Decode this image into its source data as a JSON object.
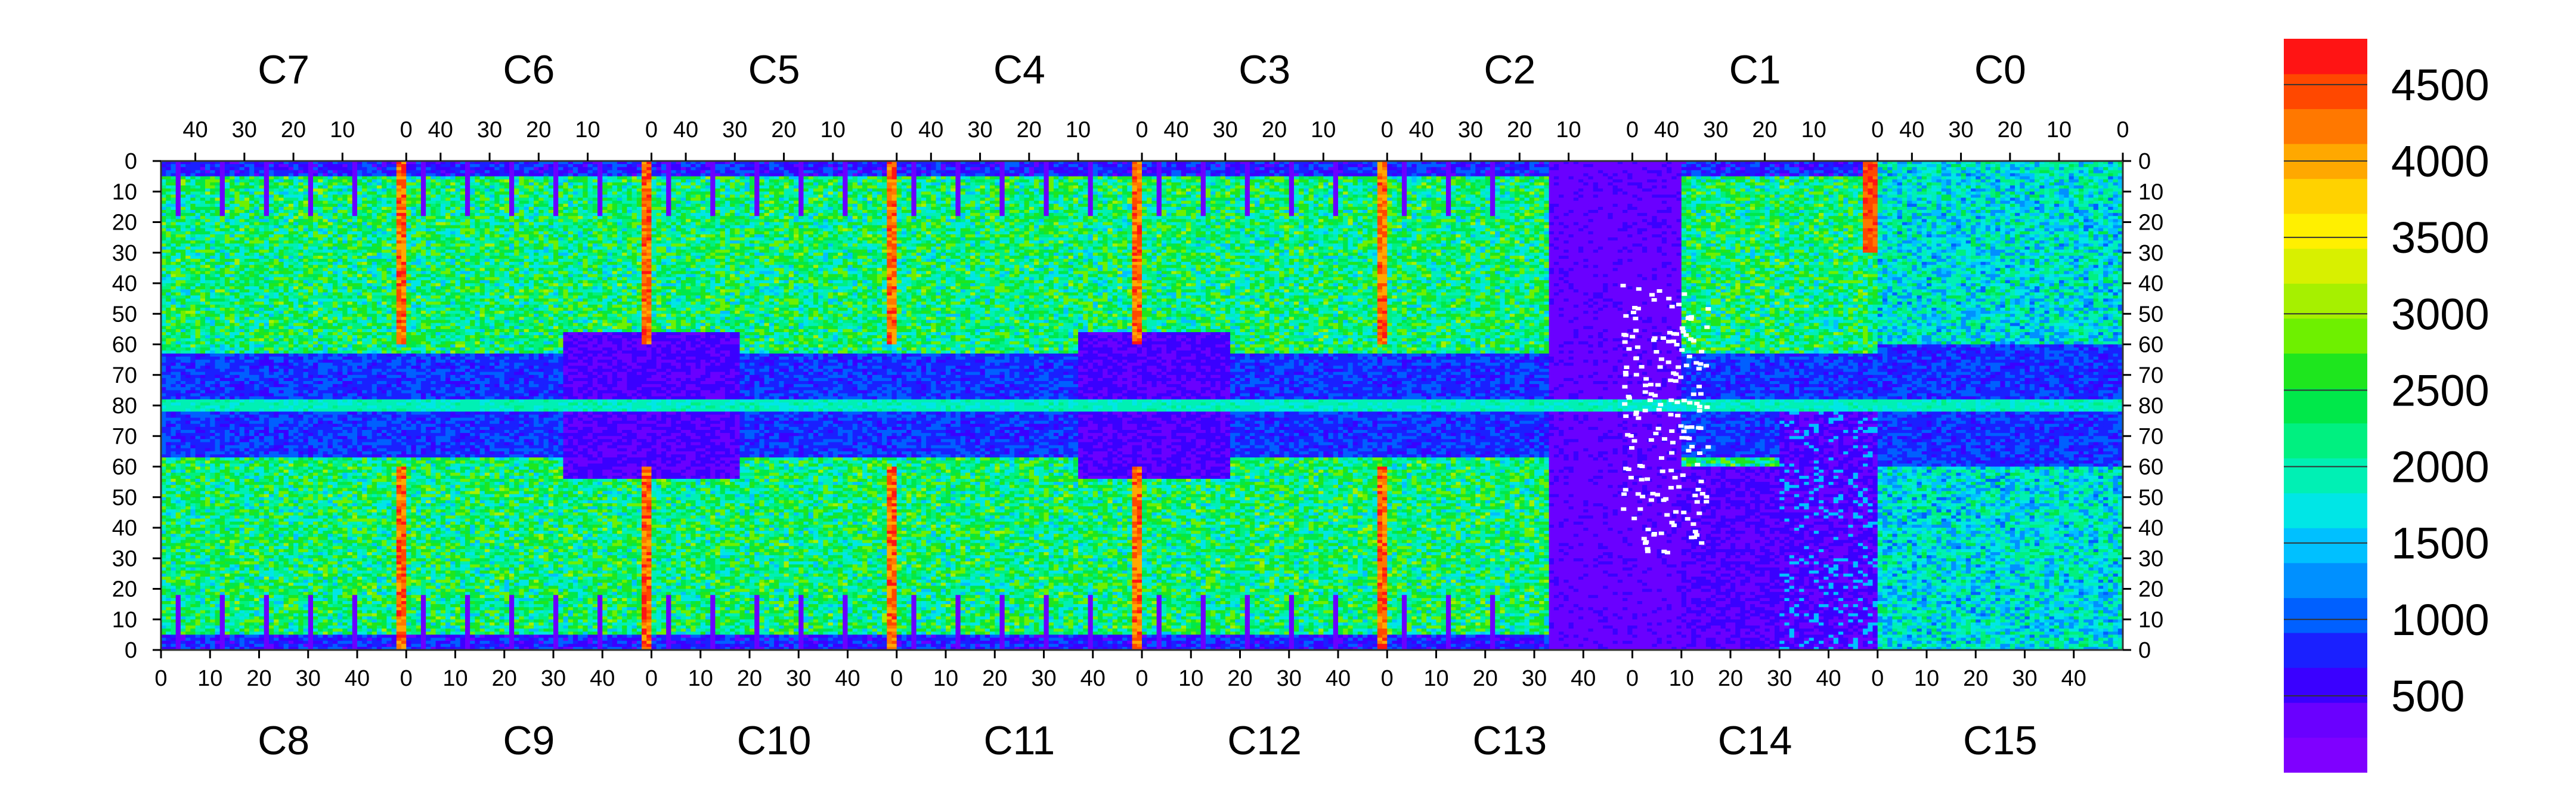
{
  "chart_data": {
    "type": "heatmap",
    "title": "",
    "xlabel": "",
    "ylabel": "",
    "grid": false,
    "top_chip_labels": [
      "C7",
      "C6",
      "C5",
      "C4",
      "C3",
      "C2",
      "C1",
      "C0"
    ],
    "bottom_chip_labels": [
      "C8",
      "C9",
      "C10",
      "C11",
      "C12",
      "C13",
      "C14",
      "C15"
    ],
    "top_x_ticks": [
      "40",
      "30",
      "20",
      "10",
      "0"
    ],
    "bottom_x_ticks": [
      "0",
      "10",
      "20",
      "30",
      "40"
    ],
    "y_ticks": [
      "0",
      "10",
      "20",
      "30",
      "40",
      "50",
      "60",
      "70",
      "80",
      "70",
      "60",
      "50",
      "40",
      "30",
      "20",
      "10",
      "0"
    ],
    "colorbar": {
      "range": [
        0,
        4800
      ],
      "tick_labels": [
        "500",
        "1000",
        "1500",
        "2000",
        "2500",
        "3000",
        "3500",
        "4000",
        "4500"
      ],
      "tick_values": [
        500,
        1000,
        1500,
        2000,
        2500,
        3000,
        3500,
        4000,
        4500
      ],
      "colors": [
        "#7f00ff",
        "#6a00ff",
        "#3a00ff",
        "#1a20ff",
        "#0060ff",
        "#0090ff",
        "#00c0ff",
        "#00e6e6",
        "#00f0b4",
        "#00f080",
        "#00e84a",
        "#1ee61e",
        "#6ef000",
        "#a6f000",
        "#d8f000",
        "#fff000",
        "#ffd200",
        "#ffa800",
        "#ff7800",
        "#ff4800",
        "#ff1414"
      ]
    },
    "features": {
      "hot_columns": [
        {
          "chip_pair": "C7/C8",
          "level": 4400
        },
        {
          "chip_pair": "C6/C9",
          "level": 4000
        },
        {
          "chip_pair": "C5/C10",
          "level": 4200
        },
        {
          "chip_pair": "C4/C11",
          "level": 4200
        },
        {
          "chip_pair": "C3/C12",
          "level": 4100
        },
        {
          "chip_pair": "C1/C0",
          "level": 4400
        }
      ],
      "dead_region": {
        "chips": [
          "C13",
          "C14"
        ],
        "level": 300,
        "contains_empty_pixels": true
      },
      "quiet_center_blocks": [
        "C9",
        "C10",
        "C11",
        "C12"
      ]
    }
  }
}
